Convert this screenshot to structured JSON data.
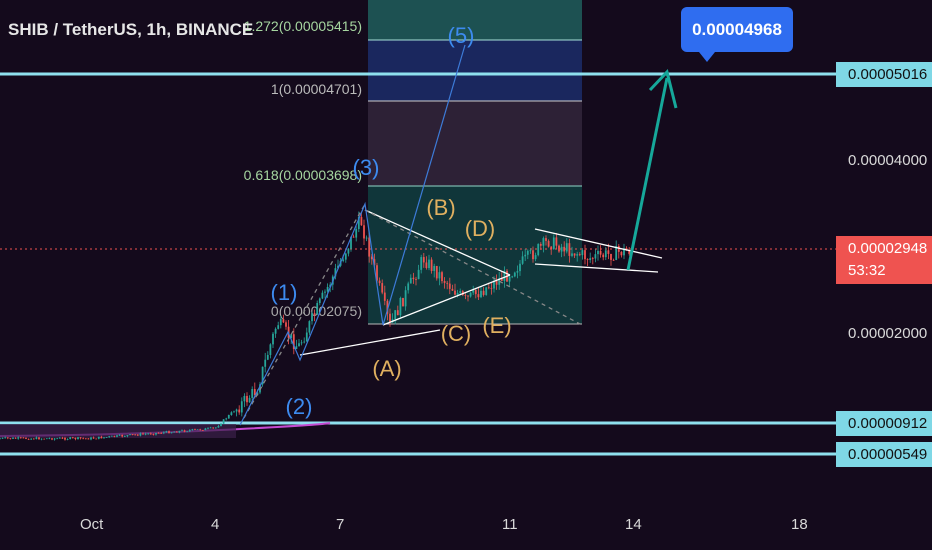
{
  "header": {
    "title": "SHIB / TetherUS, 1h, BINANCE"
  },
  "callout": {
    "value": "0.00004968"
  },
  "price_axis": {
    "labels": [
      {
        "text": "0.00005016",
        "style": "cyan"
      },
      {
        "text": "0.00004000",
        "style": "plain"
      },
      {
        "text": "0.00002948",
        "style": "red"
      },
      {
        "text": "0.00002000",
        "style": "plain"
      },
      {
        "text": "0.00000912",
        "style": "cyan"
      },
      {
        "text": "0.00000549",
        "style": "cyan"
      }
    ],
    "countdown": "53:32"
  },
  "fib": {
    "levels": [
      {
        "ratio": "1.272",
        "label": "1.272(0.00005415)",
        "price": 5.415e-05
      },
      {
        "ratio": "1",
        "label": "1(0.00004701)",
        "price": 4.701e-05
      },
      {
        "ratio": "0.618",
        "label": "0.618(0.00003698)",
        "price": 3.698e-05
      },
      {
        "ratio": "0",
        "label": "0(0.00002075)",
        "price": 2.075e-05
      }
    ]
  },
  "waves": [
    "(1)",
    "(2)",
    "(3)",
    "(5)",
    "(A)",
    "(B)",
    "(C)",
    "(D)",
    "(E)"
  ],
  "chart_data": {
    "type": "line",
    "title": "SHIB / TetherUS, 1h, BINANCE",
    "xlabel": "",
    "ylabel": "",
    "x_ticks": [
      "Oct",
      "4",
      "7",
      "11",
      "14",
      "18"
    ],
    "horizontal_levels": [
      5.016e-05,
      9.12e-06,
      5.49e-06
    ],
    "current_price": 2.948e-05,
    "target": 4.968e-05,
    "series": [
      {
        "x": [
          "Oct 1",
          "Oct 4",
          "Oct 5",
          "Oct 5.5",
          "Oct 6",
          "Oct 7.5",
          "Oct 8.2",
          "Oct 9",
          "Oct 10",
          "Oct 11",
          "Oct 12",
          "Oct 13",
          "Oct 14"
        ],
        "values": [
          7.3e-06,
          8.5e-06,
          1.3e-05,
          2.1e-05,
          1.8e-05,
          3.3e-05,
          2.05e-05,
          2.85e-05,
          2.35e-05,
          2.65e-05,
          3.05e-05,
          2.85e-05,
          2.95e-05
        ]
      }
    ]
  }
}
